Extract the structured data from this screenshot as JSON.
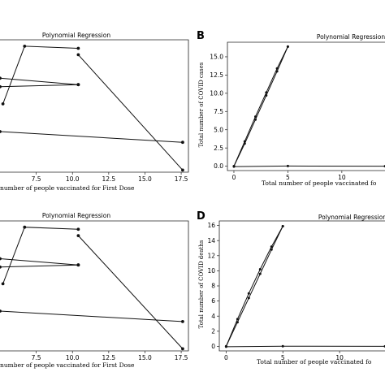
{
  "figure": {
    "panel_letters": [
      "B",
      "D"
    ]
  },
  "chart_data": [
    {
      "id": "A",
      "type": "line",
      "title": "Polynomial Regression",
      "xlabel": "number of people vaccinated for First Dose",
      "ylabel": "",
      "xlim": [
        5.0,
        18.0
      ],
      "x_ticks": [
        "7.5",
        "10.0",
        "12.5",
        "15.0",
        "17.5"
      ],
      "y_ticks": [],
      "series": [
        {
          "x": [
            5.2,
            6.7,
            10.4
          ],
          "y": [
            0.72,
            0.99,
            0.98
          ]
        },
        {
          "x": [
            10.4,
            17.6
          ],
          "y": [
            0.95,
            0.41
          ]
        },
        {
          "x": [
            5.0,
            10.4
          ],
          "y": [
            0.84,
            0.81
          ]
        },
        {
          "x": [
            5.0,
            10.4
          ],
          "y": [
            0.8,
            0.81
          ]
        },
        {
          "x": [
            5.0,
            17.6
          ],
          "y": [
            0.59,
            0.54
          ]
        }
      ]
    },
    {
      "id": "B",
      "type": "scatter",
      "title": "Polynomial Regression",
      "xlabel": "Total number of people vaccinated fo",
      "ylabel": "Total number of COVID cases",
      "xlim": [
        -0.6,
        14.0
      ],
      "ylim": [
        -0.6,
        17.0
      ],
      "x_ticks": [
        "0",
        "5",
        "10"
      ],
      "y_ticks": [
        "0.0",
        "2.5",
        "5.0",
        "7.5",
        "10.0",
        "12.5",
        "15.0"
      ],
      "series": [
        {
          "x": [
            0,
            1,
            2,
            3,
            4,
            5
          ],
          "y": [
            0,
            3.1,
            6.4,
            9.7,
            13.0,
            16.4
          ]
        },
        {
          "x": [
            0,
            1,
            2,
            3,
            4,
            5
          ],
          "y": [
            0,
            3.4,
            6.8,
            10.1,
            13.4,
            16.4
          ]
        },
        {
          "x": [
            0,
            5,
            14
          ],
          "y": [
            -0.05,
            0.02,
            0.0
          ]
        }
      ]
    },
    {
      "id": "C",
      "type": "line",
      "title": "Polynomial Regression",
      "xlabel": "number of people vaccinated for First Dose",
      "ylabel": "",
      "xlim": [
        5.0,
        18.0
      ],
      "x_ticks": [
        "7.5",
        "10.0",
        "12.5",
        "15.0",
        "17.5"
      ],
      "y_ticks": [],
      "series": [
        {
          "x": [
            5.2,
            6.7,
            10.4
          ],
          "y": [
            0.72,
            0.99,
            0.98
          ]
        },
        {
          "x": [
            10.4,
            17.6
          ],
          "y": [
            0.95,
            0.41
          ]
        },
        {
          "x": [
            5.0,
            10.4
          ],
          "y": [
            0.84,
            0.81
          ]
        },
        {
          "x": [
            5.0,
            10.4
          ],
          "y": [
            0.8,
            0.81
          ]
        },
        {
          "x": [
            5.0,
            17.6
          ],
          "y": [
            0.59,
            0.54
          ]
        }
      ]
    },
    {
      "id": "D",
      "type": "scatter",
      "title": "Polynomial Regression",
      "xlabel": "Total number of people vaccinated fo",
      "ylabel": "Total number of COVID deaths",
      "xlim": [
        -0.6,
        14.0
      ],
      "ylim": [
        -0.6,
        16.6
      ],
      "x_ticks": [
        "0",
        "5",
        "10"
      ],
      "y_ticks": [
        "0",
        "2",
        "4",
        "6",
        "8",
        "10",
        "12",
        "14",
        "16"
      ],
      "series": [
        {
          "x": [
            0,
            1,
            2,
            3,
            4,
            5
          ],
          "y": [
            0,
            3.2,
            6.4,
            9.6,
            12.8,
            15.9
          ]
        },
        {
          "x": [
            0,
            1,
            2,
            3,
            4,
            5
          ],
          "y": [
            0,
            3.6,
            7.0,
            10.2,
            13.2,
            15.9
          ]
        },
        {
          "x": [
            0,
            5,
            14
          ],
          "y": [
            -0.05,
            0.02,
            0.0
          ]
        }
      ]
    }
  ]
}
